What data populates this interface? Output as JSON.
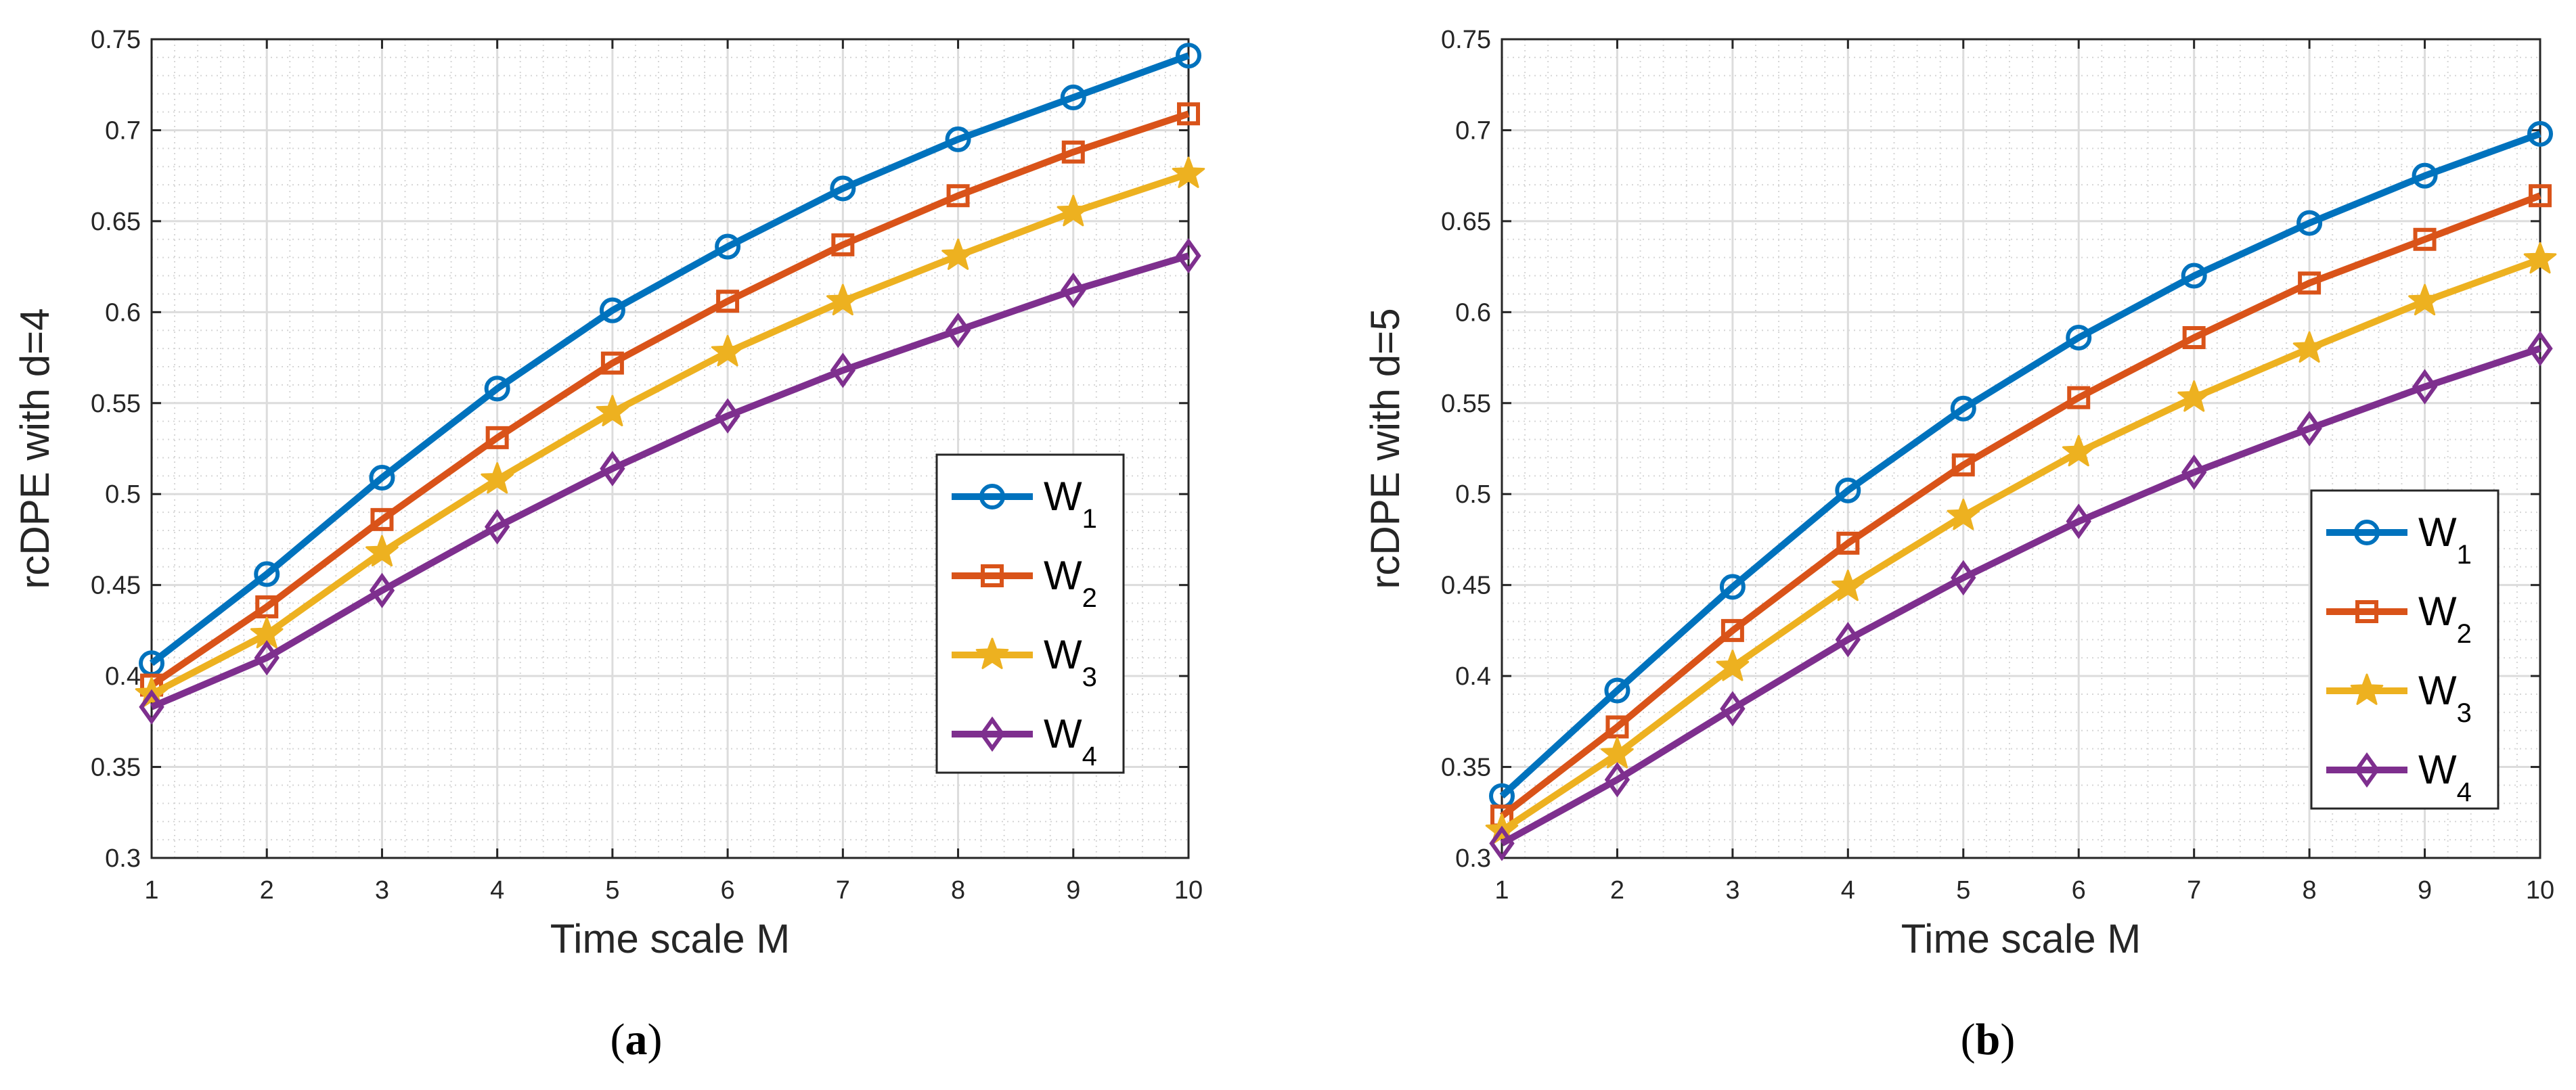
{
  "chart_data": [
    {
      "type": "line",
      "panel": "a",
      "caption_open": "(",
      "caption_letter": "a",
      "caption_close": ")",
      "xlabel": "Time scale M",
      "ylabel": "rcDPE with d=4",
      "xlim": [
        1,
        10
      ],
      "ylim": [
        0.3,
        0.75
      ],
      "grid": true,
      "minor_grid": true,
      "legend_position": "lower-right",
      "x": [
        1,
        2,
        3,
        4,
        5,
        6,
        7,
        8,
        9,
        10
      ],
      "x_tick_labels": [
        "1",
        "2",
        "3",
        "4",
        "5",
        "6",
        "7",
        "8",
        "9",
        "10"
      ],
      "y_ticks": [
        0.3,
        0.35,
        0.4,
        0.45,
        0.5,
        0.55,
        0.6,
        0.65,
        0.7,
        0.75
      ],
      "y_tick_labels": [
        "0.3",
        "0.35",
        "0.4",
        "0.45",
        "0.5",
        "0.55",
        "0.6",
        "0.65",
        "0.7",
        "0.75"
      ],
      "series": [
        {
          "name": "W",
          "sub": "1",
          "color": "#0072BD",
          "marker": "circle",
          "values": [
            0.407,
            0.456,
            0.509,
            0.558,
            0.601,
            0.636,
            0.668,
            0.695,
            0.718,
            0.741
          ]
        },
        {
          "name": "W",
          "sub": "2",
          "color": "#D95319",
          "marker": "square",
          "values": [
            0.395,
            0.438,
            0.486,
            0.531,
            0.572,
            0.606,
            0.637,
            0.664,
            0.688,
            0.709
          ]
        },
        {
          "name": "W",
          "sub": "3",
          "color": "#EDB120",
          "marker": "star",
          "values": [
            0.39,
            0.423,
            0.468,
            0.508,
            0.545,
            0.578,
            0.606,
            0.631,
            0.655,
            0.676
          ]
        },
        {
          "name": "W",
          "sub": "4",
          "color": "#7E2F8E",
          "marker": "diamond",
          "values": [
            0.383,
            0.41,
            0.447,
            0.482,
            0.514,
            0.543,
            0.568,
            0.59,
            0.612,
            0.631
          ]
        }
      ]
    },
    {
      "type": "line",
      "panel": "b",
      "caption_open": "(",
      "caption_letter": "b",
      "caption_close": ")",
      "xlabel": "Time scale M",
      "ylabel": "rcDPE with d=5",
      "xlim": [
        1,
        10
      ],
      "ylim": [
        0.3,
        0.75
      ],
      "grid": true,
      "minor_grid": true,
      "legend_position": "lower-right",
      "x": [
        1,
        2,
        3,
        4,
        5,
        6,
        7,
        8,
        9,
        10
      ],
      "x_tick_labels": [
        "1",
        "2",
        "3",
        "4",
        "5",
        "6",
        "7",
        "8",
        "9",
        "10"
      ],
      "y_ticks": [
        0.3,
        0.35,
        0.4,
        0.45,
        0.5,
        0.55,
        0.6,
        0.65,
        0.7,
        0.75
      ],
      "y_tick_labels": [
        "0.3",
        "0.35",
        "0.4",
        "0.45",
        "0.5",
        "0.55",
        "0.6",
        "0.65",
        "0.7",
        "0.75"
      ],
      "series": [
        {
          "name": "W",
          "sub": "1",
          "color": "#0072BD",
          "marker": "circle",
          "values": [
            0.334,
            0.392,
            0.449,
            0.502,
            0.547,
            0.586,
            0.62,
            0.649,
            0.675,
            0.698
          ]
        },
        {
          "name": "W",
          "sub": "2",
          "color": "#D95319",
          "marker": "square",
          "values": [
            0.323,
            0.372,
            0.425,
            0.473,
            0.516,
            0.553,
            0.586,
            0.616,
            0.64,
            0.664
          ]
        },
        {
          "name": "W",
          "sub": "3",
          "color": "#EDB120",
          "marker": "star",
          "values": [
            0.315,
            0.357,
            0.405,
            0.449,
            0.488,
            0.523,
            0.553,
            0.58,
            0.606,
            0.629
          ]
        },
        {
          "name": "W",
          "sub": "4",
          "color": "#7E2F8E",
          "marker": "diamond",
          "values": [
            0.308,
            0.343,
            0.382,
            0.42,
            0.454,
            0.485,
            0.512,
            0.536,
            0.559,
            0.58
          ]
        }
      ]
    }
  ]
}
